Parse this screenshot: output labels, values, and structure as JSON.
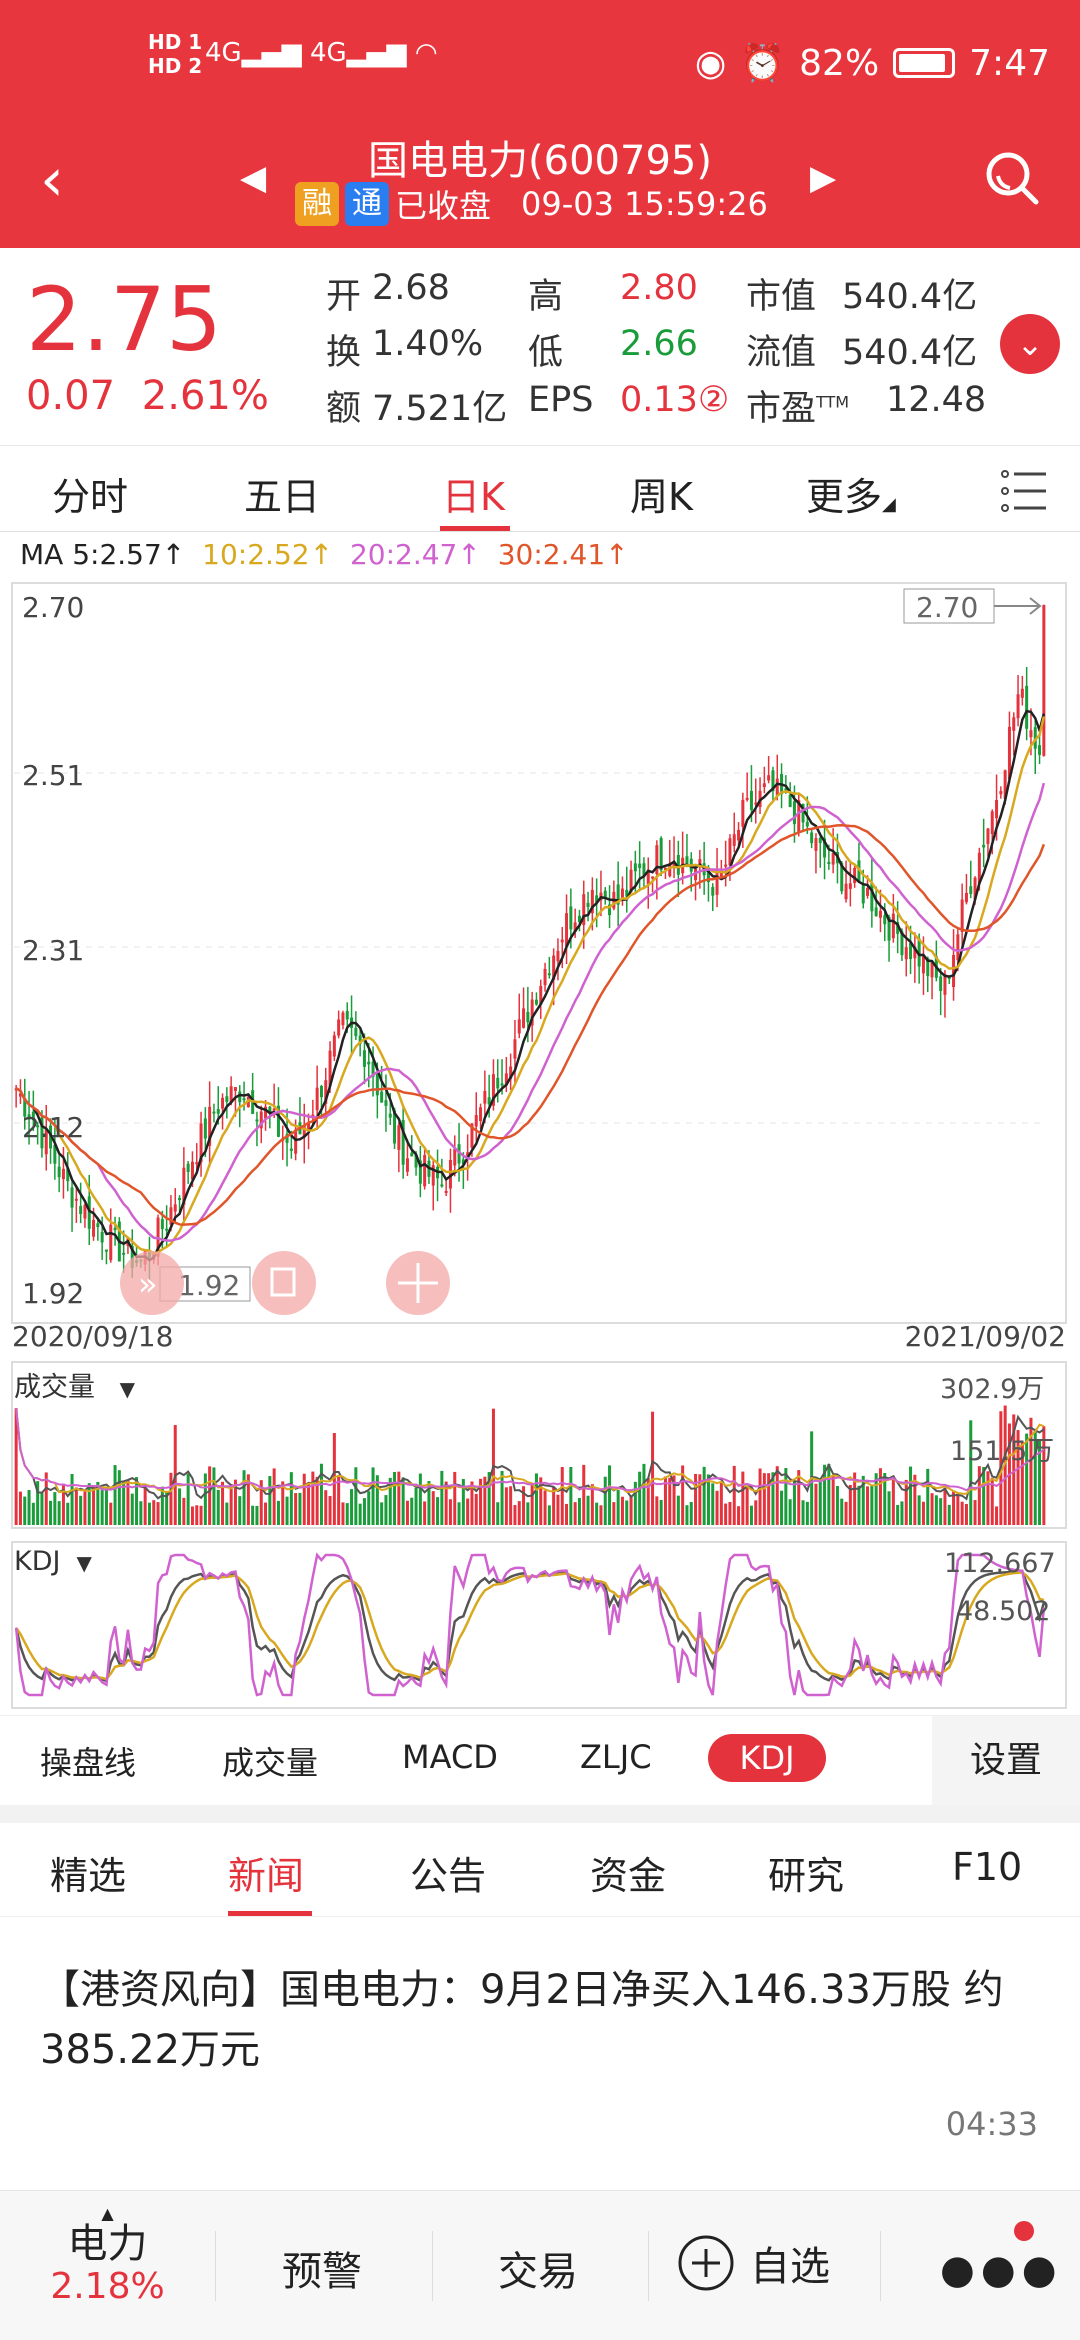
{
  "status": {
    "hd1": "HD 1",
    "hd2": "HD 2",
    "net": "4G",
    "battery": "82%",
    "time": "7:47"
  },
  "header": {
    "title": "国电电力(600795)",
    "badge1": "融",
    "badge2": "通",
    "state": "已收盘",
    "datetime": "09-03 15:59:26"
  },
  "quote": {
    "price": "2.75",
    "change": "0.07",
    "change_pct": "2.61%",
    "open_label": "开",
    "open": "2.68",
    "high_label": "高",
    "high": "2.80",
    "mktcap_label": "市值",
    "mktcap": "540.4亿",
    "turnover_label": "换",
    "turnover": "1.40%",
    "low_label": "低",
    "low": "2.66",
    "float_label": "流值",
    "float": "540.4亿",
    "amount_label": "额",
    "amount": "7.521亿",
    "eps_label": "EPS",
    "eps": "0.13②",
    "pe_label": "市盈",
    "pe_sup": "TTM",
    "pe": "12.48"
  },
  "tabs": [
    "分时",
    "五日",
    "日K",
    "周K",
    "更多"
  ],
  "ma": {
    "ma5": "MA 5:2.57↑",
    "ma10": "10:2.52↑",
    "ma20": "20:2.47↑",
    "ma30": "30:2.41↑"
  },
  "chart_data": {
    "type": "candlestick",
    "y_ticks": [
      "2.70",
      "2.51",
      "2.31",
      "2.12",
      "1.92"
    ],
    "ylim": [
      1.92,
      2.7
    ],
    "x_start": "2020/09/18",
    "x_end": "2021/09/02",
    "max_marker": "2.70",
    "min_marker": "1.92",
    "close_trend": [
      2.15,
      2.1,
      2.04,
      2.0,
      1.97,
      1.95,
      2.0,
      2.07,
      2.13,
      2.15,
      2.12,
      2.08,
      2.14,
      2.22,
      2.19,
      2.1,
      2.06,
      2.04,
      2.09,
      2.15,
      2.21,
      2.28,
      2.34,
      2.38,
      2.36,
      2.4,
      2.42,
      2.4,
      2.38,
      2.46,
      2.49,
      2.47,
      2.42,
      2.39,
      2.37,
      2.33,
      2.3,
      2.26,
      2.38,
      2.47,
      2.6,
      2.52
    ],
    "volume": {
      "label": "成交量",
      "max_label": "302.9万",
      "mid_label": "151.5万"
    },
    "kdj": {
      "label": "KDJ",
      "max_label": "112.667",
      "mid_label": "48.502"
    }
  },
  "indicators": [
    "操盘线",
    "成交量",
    "MACD",
    "ZLJC",
    "KDJ"
  ],
  "settings": "设置",
  "news_tabs": [
    "精选",
    "新闻",
    "公告",
    "资金",
    "研究",
    "F10"
  ],
  "news": {
    "headline": "【港资风向】国电电力：9月2日净买入146.33万股 约385.22万元",
    "time": "04:33"
  },
  "bottom": {
    "sector": "电力",
    "sector_pct": "2.18%",
    "alert": "预警",
    "trade": "交易",
    "watch": "自选"
  }
}
